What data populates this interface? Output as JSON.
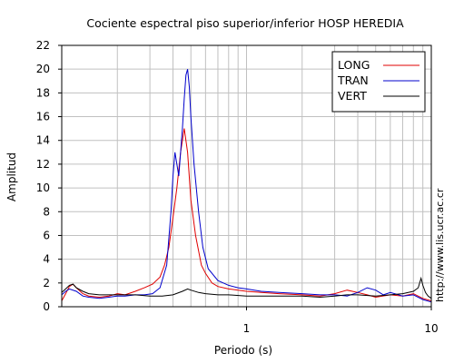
{
  "chart_data": {
    "type": "line",
    "title": "Cociente espectral piso superior/inferior  HOSP HEREDIA",
    "xlabel": "Periodo (s)",
    "ylabel": "Amplitud",
    "xscale": "log",
    "xlim": [
      0.1,
      10
    ],
    "ylim": [
      0,
      22
    ],
    "x_tick_labels": [
      "1",
      "10"
    ],
    "y_ticks": [
      0,
      2,
      4,
      6,
      8,
      10,
      12,
      14,
      16,
      18,
      20,
      22
    ],
    "grid": true,
    "legend_position": "top-right",
    "watermark": "http://www.lis.ucr.ac.cr",
    "series": [
      {
        "name": "LONG",
        "color": "#e00000",
        "points": [
          [
            0.1,
            0.5
          ],
          [
            0.105,
            1.1
          ],
          [
            0.11,
            1.7
          ],
          [
            0.115,
            1.9
          ],
          [
            0.12,
            1.6
          ],
          [
            0.13,
            1.1
          ],
          [
            0.14,
            0.9
          ],
          [
            0.16,
            0.8
          ],
          [
            0.18,
            0.9
          ],
          [
            0.2,
            1.1
          ],
          [
            0.22,
            1.0
          ],
          [
            0.25,
            1.3
          ],
          [
            0.28,
            1.6
          ],
          [
            0.31,
            1.9
          ],
          [
            0.34,
            2.5
          ],
          [
            0.36,
            3.5
          ],
          [
            0.38,
            5
          ],
          [
            0.4,
            7.5
          ],
          [
            0.42,
            10
          ],
          [
            0.44,
            13
          ],
          [
            0.46,
            15
          ],
          [
            0.48,
            13
          ],
          [
            0.5,
            9
          ],
          [
            0.53,
            6
          ],
          [
            0.57,
            3.5
          ],
          [
            0.6,
            2.8
          ],
          [
            0.65,
            2.0
          ],
          [
            0.7,
            1.7
          ],
          [
            0.8,
            1.5
          ],
          [
            0.9,
            1.4
          ],
          [
            1.0,
            1.3
          ],
          [
            1.2,
            1.2
          ],
          [
            1.5,
            1.1
          ],
          [
            2.0,
            1.0
          ],
          [
            2.5,
            0.9
          ],
          [
            3.0,
            1.1
          ],
          [
            3.5,
            1.4
          ],
          [
            4.0,
            1.2
          ],
          [
            4.5,
            1.0
          ],
          [
            5.0,
            0.8
          ],
          [
            6.0,
            1.0
          ],
          [
            7.0,
            0.9
          ],
          [
            8.0,
            1.1
          ],
          [
            9.0,
            0.7
          ],
          [
            10.0,
            0.5
          ]
        ]
      },
      {
        "name": "TRAN",
        "color": "#0000cc",
        "points": [
          [
            0.1,
            1.0
          ],
          [
            0.105,
            1.3
          ],
          [
            0.11,
            1.5
          ],
          [
            0.12,
            1.3
          ],
          [
            0.13,
            0.9
          ],
          [
            0.14,
            0.8
          ],
          [
            0.16,
            0.7
          ],
          [
            0.18,
            0.8
          ],
          [
            0.2,
            0.9
          ],
          [
            0.22,
            0.9
          ],
          [
            0.25,
            1.0
          ],
          [
            0.28,
            1.0
          ],
          [
            0.31,
            1.1
          ],
          [
            0.34,
            1.6
          ],
          [
            0.37,
            3.5
          ],
          [
            0.39,
            8
          ],
          [
            0.4,
            11
          ],
          [
            0.41,
            13
          ],
          [
            0.42,
            12
          ],
          [
            0.43,
            11
          ],
          [
            0.44,
            13
          ],
          [
            0.45,
            15
          ],
          [
            0.46,
            17.5
          ],
          [
            0.47,
            19.5
          ],
          [
            0.48,
            20
          ],
          [
            0.49,
            18.5
          ],
          [
            0.5,
            16
          ],
          [
            0.52,
            12
          ],
          [
            0.55,
            8
          ],
          [
            0.58,
            5
          ],
          [
            0.62,
            3.2
          ],
          [
            0.7,
            2.2
          ],
          [
            0.8,
            1.8
          ],
          [
            0.9,
            1.6
          ],
          [
            1.0,
            1.5
          ],
          [
            1.2,
            1.3
          ],
          [
            1.5,
            1.2
          ],
          [
            2.0,
            1.1
          ],
          [
            2.5,
            1.0
          ],
          [
            3.0,
            1.0
          ],
          [
            3.5,
            0.9
          ],
          [
            4.0,
            1.2
          ],
          [
            4.5,
            1.6
          ],
          [
            5.0,
            1.4
          ],
          [
            5.5,
            1.0
          ],
          [
            6.0,
            1.2
          ],
          [
            7.0,
            0.9
          ],
          [
            8.0,
            1.0
          ],
          [
            9.0,
            0.6
          ],
          [
            10.0,
            0.4
          ]
        ]
      },
      {
        "name": "VERT",
        "color": "#000000",
        "points": [
          [
            0.1,
            1.2
          ],
          [
            0.105,
            1.5
          ],
          [
            0.11,
            1.8
          ],
          [
            0.115,
            1.9
          ],
          [
            0.12,
            1.6
          ],
          [
            0.13,
            1.3
          ],
          [
            0.14,
            1.1
          ],
          [
            0.16,
            1.0
          ],
          [
            0.2,
            1.0
          ],
          [
            0.25,
            1.0
          ],
          [
            0.3,
            0.9
          ],
          [
            0.35,
            0.9
          ],
          [
            0.4,
            1.0
          ],
          [
            0.45,
            1.3
          ],
          [
            0.48,
            1.5
          ],
          [
            0.5,
            1.4
          ],
          [
            0.55,
            1.2
          ],
          [
            0.6,
            1.1
          ],
          [
            0.7,
            1.0
          ],
          [
            0.8,
            1.0
          ],
          [
            1.0,
            0.9
          ],
          [
            1.5,
            0.9
          ],
          [
            2.0,
            0.9
          ],
          [
            2.5,
            0.8
          ],
          [
            3.0,
            0.9
          ],
          [
            3.5,
            1.0
          ],
          [
            4.0,
            1.0
          ],
          [
            5.0,
            0.9
          ],
          [
            6.0,
            1.0
          ],
          [
            7.0,
            1.1
          ],
          [
            8.0,
            1.3
          ],
          [
            8.5,
            1.6
          ],
          [
            8.8,
            2.4
          ],
          [
            9.0,
            1.8
          ],
          [
            9.3,
            1.2
          ],
          [
            9.6,
            0.9
          ],
          [
            10.0,
            0.7
          ]
        ]
      }
    ]
  }
}
